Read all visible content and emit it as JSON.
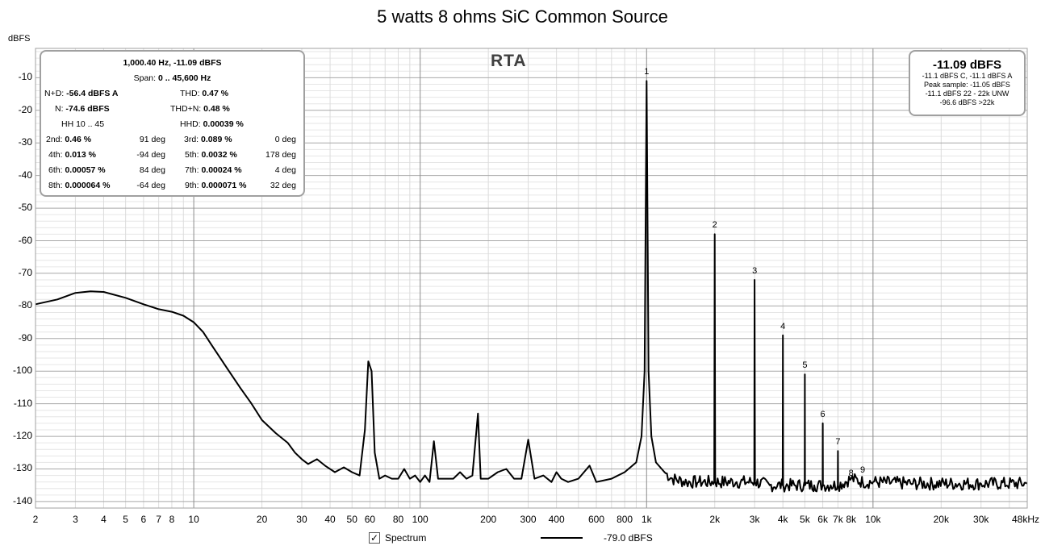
{
  "chart_data": {
    "type": "line",
    "title": "5 watts 8 ohms SiC Common Source",
    "ylabel": "dBFS",
    "x_unit": "48kHz",
    "xscale": "log",
    "xlim": [
      2,
      48000
    ],
    "ylim": [
      -142,
      -1
    ],
    "grid": true,
    "y_ticks": [
      -10,
      -20,
      -30,
      -40,
      -50,
      -60,
      -70,
      -80,
      -90,
      -100,
      -110,
      -120,
      -130,
      -140
    ],
    "x_ticks": [
      {
        "v": 2,
        "label": "2"
      },
      {
        "v": 3,
        "label": "3"
      },
      {
        "v": 4,
        "label": "4"
      },
      {
        "v": 5,
        "label": "5"
      },
      {
        "v": 6,
        "label": "6"
      },
      {
        "v": 7,
        "label": "7"
      },
      {
        "v": 8,
        "label": "8"
      },
      {
        "v": 10,
        "label": "10"
      },
      {
        "v": 20,
        "label": "20"
      },
      {
        "v": 30,
        "label": "30"
      },
      {
        "v": 40,
        "label": "40"
      },
      {
        "v": 50,
        "label": "50"
      },
      {
        "v": 60,
        "label": "60"
      },
      {
        "v": 80,
        "label": "80"
      },
      {
        "v": 100,
        "label": "100"
      },
      {
        "v": 200,
        "label": "200"
      },
      {
        "v": 300,
        "label": "300"
      },
      {
        "v": 400,
        "label": "400"
      },
      {
        "v": 600,
        "label": "600"
      },
      {
        "v": 800,
        "label": "800"
      },
      {
        "v": 1000,
        "label": "1k"
      },
      {
        "v": 2000,
        "label": "2k"
      },
      {
        "v": 3000,
        "label": "3k"
      },
      {
        "v": 4000,
        "label": "4k"
      },
      {
        "v": 5000,
        "label": "5k"
      },
      {
        "v": 6000,
        "label": "6k"
      },
      {
        "v": 7000,
        "label": "7k"
      },
      {
        "v": 8000,
        "label": "8k"
      },
      {
        "v": 10000,
        "label": "10k"
      },
      {
        "v": 20000,
        "label": "20k"
      },
      {
        "v": 30000,
        "label": "30k"
      },
      {
        "v": 48000,
        "label": "48kHz"
      }
    ],
    "series": [
      {
        "name": "Spectrum",
        "points": [
          [
            2,
            -79.5
          ],
          [
            2.5,
            -78
          ],
          [
            3,
            -76
          ],
          [
            3.5,
            -75.5
          ],
          [
            4,
            -75.7
          ],
          [
            5,
            -77.5
          ],
          [
            6,
            -79.5
          ],
          [
            7,
            -81
          ],
          [
            8,
            -81.8
          ],
          [
            9,
            -83
          ],
          [
            10,
            -85
          ],
          [
            11,
            -88
          ],
          [
            12,
            -92
          ],
          [
            14,
            -99
          ],
          [
            16,
            -105
          ],
          [
            18,
            -110
          ],
          [
            20,
            -115
          ],
          [
            23,
            -119
          ],
          [
            26,
            -122
          ],
          [
            28,
            -125
          ],
          [
            30,
            -127
          ],
          [
            32,
            -128.5
          ],
          [
            35,
            -127
          ],
          [
            38,
            -129
          ],
          [
            42,
            -131
          ],
          [
            46,
            -129.5
          ],
          [
            50,
            -131
          ],
          [
            54,
            -132
          ],
          [
            57,
            -118
          ],
          [
            59,
            -97
          ],
          [
            61,
            -100
          ],
          [
            63,
            -125
          ],
          [
            66,
            -133
          ],
          [
            70,
            -132
          ],
          [
            75,
            -133
          ],
          [
            80,
            -133
          ],
          [
            85,
            -130
          ],
          [
            90,
            -133
          ],
          [
            95,
            -132
          ],
          [
            100,
            -134
          ],
          [
            105,
            -132
          ],
          [
            110,
            -134
          ],
          [
            115,
            -121.5
          ],
          [
            120,
            -133
          ],
          [
            130,
            -133
          ],
          [
            140,
            -133
          ],
          [
            150,
            -131
          ],
          [
            160,
            -133
          ],
          [
            170,
            -132
          ],
          [
            180,
            -113
          ],
          [
            185,
            -133
          ],
          [
            200,
            -133
          ],
          [
            220,
            -131
          ],
          [
            240,
            -130
          ],
          [
            260,
            -133
          ],
          [
            280,
            -133
          ],
          [
            300,
            -121
          ],
          [
            320,
            -133
          ],
          [
            350,
            -132
          ],
          [
            380,
            -134
          ],
          [
            400,
            -131
          ],
          [
            420,
            -133
          ],
          [
            450,
            -134
          ],
          [
            500,
            -133
          ],
          [
            560,
            -129
          ],
          [
            600,
            -134
          ],
          [
            700,
            -133
          ],
          [
            800,
            -131
          ],
          [
            900,
            -128
          ],
          [
            950,
            -120
          ],
          [
            980,
            -100
          ],
          [
            1000,
            -11
          ],
          [
            1020,
            -100
          ],
          [
            1050,
            -120
          ],
          [
            1100,
            -128
          ],
          [
            1200,
            -131
          ],
          [
            1300,
            -133
          ],
          [
            1500,
            -134
          ],
          [
            1700,
            -134
          ],
          [
            1990,
            -134
          ],
          [
            2000,
            -58
          ],
          [
            2010,
            -134
          ],
          [
            2500,
            -134
          ],
          [
            2990,
            -134
          ],
          [
            3000,
            -72
          ],
          [
            3010,
            -134
          ],
          [
            3500,
            -135
          ],
          [
            3990,
            -135
          ],
          [
            4000,
            -89
          ],
          [
            4010,
            -135
          ],
          [
            4500,
            -135
          ],
          [
            4990,
            -135
          ],
          [
            5000,
            -101
          ],
          [
            5010,
            -135
          ],
          [
            5500,
            -135
          ],
          [
            5990,
            -135
          ],
          [
            6000,
            -116
          ],
          [
            6010,
            -135
          ],
          [
            6500,
            -135
          ],
          [
            6990,
            -135
          ],
          [
            7000,
            -124.5
          ],
          [
            7010,
            -135
          ],
          [
            8000,
            -133
          ],
          [
            9000,
            -134
          ],
          [
            10000,
            -134
          ],
          [
            15000,
            -134.5
          ],
          [
            20000,
            -134.5
          ],
          [
            30000,
            -134.5
          ],
          [
            48000,
            -134.5
          ]
        ]
      }
    ],
    "harmonic_labels": [
      {
        "n": "1",
        "f": 1000,
        "db": -11
      },
      {
        "n": "2",
        "f": 2000,
        "db": -58
      },
      {
        "n": "3",
        "f": 3000,
        "db": -72
      },
      {
        "n": "4",
        "f": 4000,
        "db": -89
      },
      {
        "n": "5",
        "f": 5000,
        "db": -101
      },
      {
        "n": "6",
        "f": 6000,
        "db": -116
      },
      {
        "n": "7",
        "f": 7000,
        "db": -124.5
      },
      {
        "n": "8",
        "f": 8000,
        "db": -134
      },
      {
        "n": "9",
        "f": 9000,
        "db": -133
      }
    ],
    "annotation": "RTA"
  },
  "stats": {
    "headline": "1,000.40 Hz, -11.09 dBFS",
    "span_label": "Span:",
    "span_value": "0 .. 45,600 Hz",
    "nd_label": "N+D:",
    "nd_value": "-56.4 dBFS A",
    "thd_label": "THD:",
    "thd_value": "0.47 %",
    "n_label": "N:",
    "n_value": "-74.6 dBFS",
    "thdn_label": "THD+N:",
    "thdn_value": "0.48 %",
    "hh_label": "HH 10 .. 45",
    "hhd_label": "HHD:",
    "hhd_value": "0.00039 %",
    "h2_label": "2nd:",
    "h2_value": "0.46 %",
    "h2_phase": "91 deg",
    "h3_label": "3rd:",
    "h3_value": "0.089 %",
    "h3_phase": "0 deg",
    "h4_label": "4th:",
    "h4_value": "0.013 %",
    "h4_phase": "-94 deg",
    "h5_label": "5th:",
    "h5_value": "0.0032 %",
    "h5_phase": "178 deg",
    "h6_label": "6th:",
    "h6_value": "0.00057 %",
    "h6_phase": "84 deg",
    "h7_label": "7th:",
    "h7_value": "0.00024 %",
    "h7_phase": "4 deg",
    "h8_label": "8th:",
    "h8_value": "0.000064 %",
    "h8_phase": "-64 deg",
    "h9_label": "9th:",
    "h9_value": "0.000071 %",
    "h9_phase": "32 deg"
  },
  "peak": {
    "value": "-11.09 dBFS",
    "line1": "-11.1 dBFS C, -11.1 dBFS A",
    "line2": "Peak sample: -11.05 dBFS",
    "line3": "-11.1 dBFS 22 - 22k UNW",
    "line4": "-96.6 dBFS >22k"
  },
  "legend": {
    "checkbox_mark": "✓",
    "series_label": "Spectrum",
    "value": "-79.0 dBFS"
  }
}
